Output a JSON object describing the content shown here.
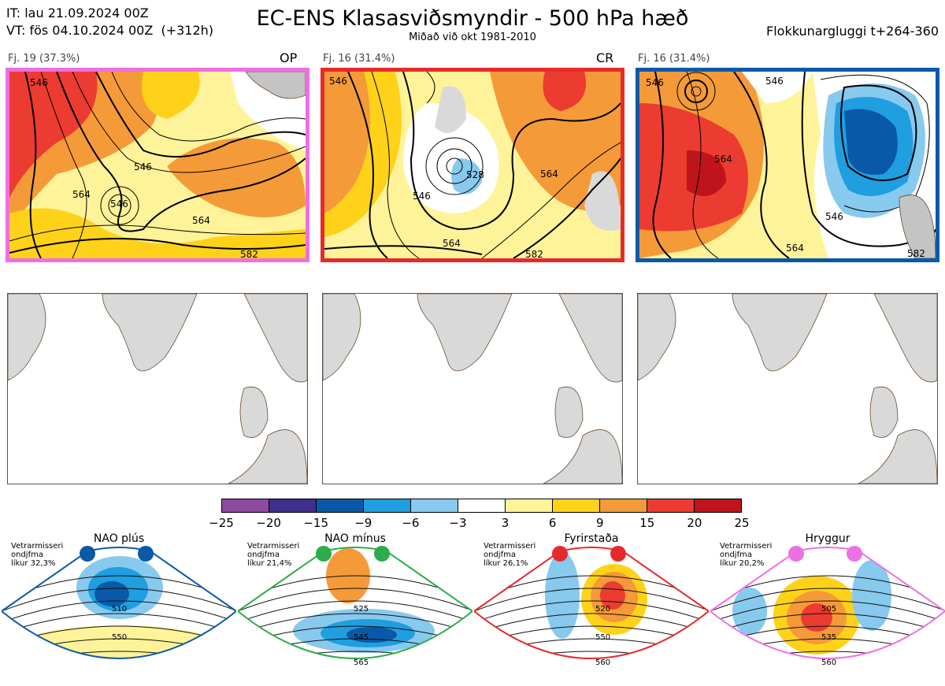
{
  "header": {
    "init_time": "IT: lau 21.09.2024 00Z",
    "valid_time": "VT: fös 04.10.2024 00Z  (+312h)",
    "title": "EC-ENS Klasasviðsmyndir - 500 hPa hæð",
    "subtitle": "Miðað við okt 1981-2010",
    "window": "Flokkunargluggi t+264-360"
  },
  "clusters": [
    {
      "label": "Fj. 19 (37.3%)",
      "tag": "OP",
      "border_color": "#ee6fe4",
      "contour_labels": [
        "546",
        "546",
        "564",
        "546",
        "564",
        "582"
      ]
    },
    {
      "label": "Fj. 16 (31.4%)",
      "tag": "CR",
      "border_color": "#e8292a",
      "contour_labels": [
        "546",
        "528",
        "546",
        "564",
        "564",
        "582"
      ]
    },
    {
      "label": "Fj. 16 (31.4%)",
      "tag": "",
      "border_color": "#0a59a8",
      "contour_labels": [
        "546",
        "564",
        "546",
        "546",
        "564",
        "582"
      ]
    }
  ],
  "colorbar": {
    "colors": [
      "#8e4aa0",
      "#3f2f90",
      "#0a59a8",
      "#1f9ee0",
      "#88c9ee",
      "#ffffff",
      "#fff39a",
      "#ffd21a",
      "#f59a38",
      "#ec3b30",
      "#c0141c"
    ],
    "ticks": [
      "−25",
      "−20",
      "−15",
      "−9",
      "−6",
      "−3",
      "3",
      "6",
      "9",
      "15",
      "20",
      "25"
    ]
  },
  "regimes": [
    {
      "title": "NAO plús",
      "note": "Vetrarmisseri\nondjfma\nlíkur 32,3%",
      "color": "#0a59a8",
      "contour_labels": [
        "510",
        "550"
      ]
    },
    {
      "title": "NAO mínus",
      "note": "Vetrarmisseri\nondjfma\nlíkur 21,4%",
      "color": "#2eac4a",
      "contour_labels": [
        "525",
        "545",
        "565"
      ]
    },
    {
      "title": "Fyrirstaða",
      "note": "Vetrarmisseri\nondjfma\nlíkur 26,1%",
      "color": "#e8292a",
      "contour_labels": [
        "520",
        "550",
        "560"
      ]
    },
    {
      "title": "Hryggur",
      "note": "Vetrarmisseri\nondjfma\nlíkur 20,2%",
      "color": "#ee6fe4",
      "contour_labels": [
        "505",
        "535",
        "560"
      ]
    }
  ]
}
